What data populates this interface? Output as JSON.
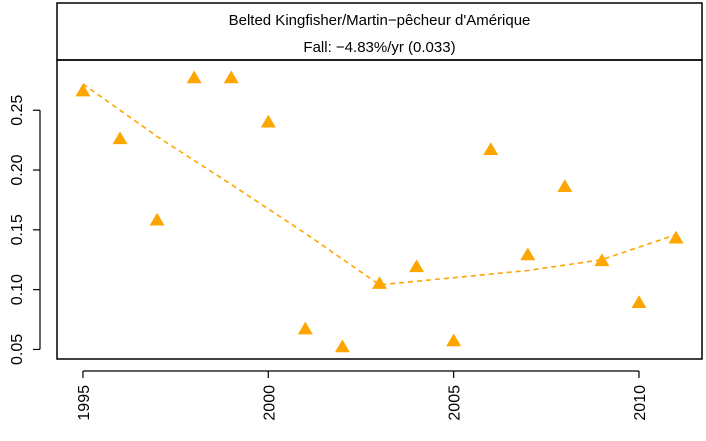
{
  "header": {
    "species": "Belted Kingfisher/Martin−pêcheur d'Amérique",
    "trend": "Fall: −4.83%/yr (0.033)"
  },
  "chart_data": {
    "type": "scatter",
    "x": [
      1995,
      1996,
      1997,
      1998,
      1999,
      2000,
      2001,
      2002,
      2003,
      2004,
      2005,
      2006,
      2007,
      2008,
      2009,
      2010,
      2011
    ],
    "y": [
      0.266,
      0.226,
      0.158,
      0.277,
      0.277,
      0.24,
      0.067,
      0.052,
      0.105,
      0.119,
      0.057,
      0.217,
      0.129,
      0.186,
      0.124,
      0.089,
      0.143
    ],
    "trend_line": {
      "x": [
        1995,
        1997,
        1999,
        2001,
        2003,
        2005,
        2007,
        2009,
        2011
      ],
      "y": [
        0.272,
        0.228,
        0.188,
        0.147,
        0.104,
        0.11,
        0.116,
        0.125,
        0.146
      ]
    },
    "xlim": [
      1994.3,
      2011.7
    ],
    "ylim": [
      0.042,
      0.292
    ],
    "x_ticks": [
      1995,
      2000,
      2005,
      2010
    ],
    "y_ticks": [
      0.05,
      0.1,
      0.15,
      0.2,
      0.25
    ],
    "x_tick_labels": [
      "1995",
      "2000",
      "2005",
      "2010"
    ],
    "y_tick_labels": [
      "0.05",
      "0.10",
      "0.15",
      "0.20",
      "0.25"
    ],
    "colors": {
      "points": "#FFA500",
      "trend": "#FFA500",
      "axis": "#000000"
    },
    "marker": "triangle",
    "trend_style": "dashed"
  }
}
